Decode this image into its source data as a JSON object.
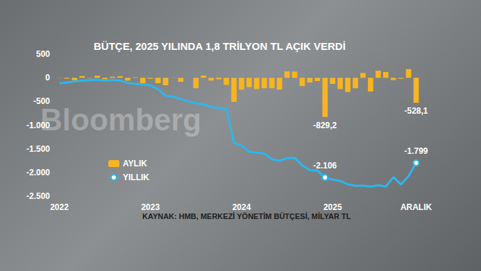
{
  "chart_data": {
    "type": "bar",
    "title": "BÜTÇE, 2025 YILINDA 1,8 TRİLYON TL AÇIK VERDİ",
    "source": "KAYNAK: HMB, MERKEZİ YÖNETİM BÜTÇESİ, MİLYAR TL",
    "watermark": "Bloomberg",
    "categories": [
      "2022",
      null,
      null,
      null,
      null,
      null,
      null,
      null,
      null,
      null,
      null,
      null,
      "2023",
      null,
      null,
      null,
      null,
      null,
      null,
      null,
      null,
      null,
      null,
      null,
      "2024",
      null,
      null,
      null,
      null,
      null,
      null,
      null,
      null,
      null,
      null,
      null,
      "2025",
      null,
      null,
      null,
      null,
      null,
      null,
      null,
      null,
      null,
      null,
      "ARALIK"
    ],
    "series": [
      {
        "name": "AYLIK",
        "type": "bar",
        "color": "#f7b520",
        "values": [
          2,
          -18,
          -52,
          35,
          -9,
          43,
          -30,
          19,
          33,
          -58,
          10,
          -114,
          -21,
          -115,
          -160,
          3,
          -86,
          -1,
          -220,
          45,
          -58,
          -35,
          -150,
          -509,
          -250,
          -200,
          -240,
          -220,
          -220,
          -250,
          135,
          130,
          -175,
          -100,
          -70,
          -829.2,
          -130,
          -240,
          -300,
          -220,
          100,
          -290,
          150,
          120,
          -50,
          -20,
          180,
          -528.1
        ],
        "value_labels": [
          null,
          null,
          null,
          null,
          null,
          null,
          null,
          null,
          null,
          null,
          null,
          null,
          null,
          null,
          null,
          null,
          null,
          null,
          null,
          null,
          null,
          null,
          null,
          null,
          null,
          null,
          null,
          null,
          null,
          null,
          null,
          null,
          null,
          null,
          null,
          "-829,2",
          null,
          null,
          null,
          null,
          null,
          null,
          null,
          null,
          null,
          null,
          null,
          "-528,1"
        ]
      },
      {
        "name": "YILLIK",
        "type": "line",
        "color": "#29b8f0",
        "marker": "circle",
        "values": [
          -120,
          -100,
          -80,
          -60,
          -50,
          -40,
          -60,
          -50,
          -60,
          -110,
          -130,
          -139,
          -160,
          -240,
          -380,
          -400,
          -450,
          -500,
          -540,
          -560,
          -620,
          -640,
          -660,
          -1375,
          -1430,
          -1560,
          -1580,
          -1600,
          -1720,
          -1750,
          -1700,
          -1690,
          -1850,
          -1950,
          -1960,
          -2106,
          -2150,
          -2180,
          -2250,
          -2280,
          -2280,
          -2300,
          -2270,
          -2300,
          -2100,
          -2250,
          -2080,
          -1799
        ],
        "value_labels": [
          null,
          null,
          null,
          null,
          null,
          null,
          null,
          null,
          null,
          null,
          null,
          null,
          null,
          null,
          null,
          null,
          null,
          null,
          null,
          null,
          null,
          null,
          null,
          null,
          null,
          null,
          null,
          null,
          null,
          null,
          null,
          null,
          null,
          null,
          null,
          "-2.106",
          null,
          null,
          null,
          null,
          null,
          null,
          null,
          null,
          null,
          null,
          null,
          "-1.799"
        ]
      }
    ],
    "ylim": [
      -2500,
      500
    ],
    "yticks": [
      500,
      0,
      -500,
      {
        "value": -1000,
        "label": "-1.000"
      },
      {
        "value": -1500,
        "label": "-1.500"
      },
      {
        "value": -2000,
        "label": "-2.000"
      },
      {
        "value": -2500,
        "label": "-2.500"
      }
    ],
    "grid": false,
    "legend": "lower left"
  }
}
